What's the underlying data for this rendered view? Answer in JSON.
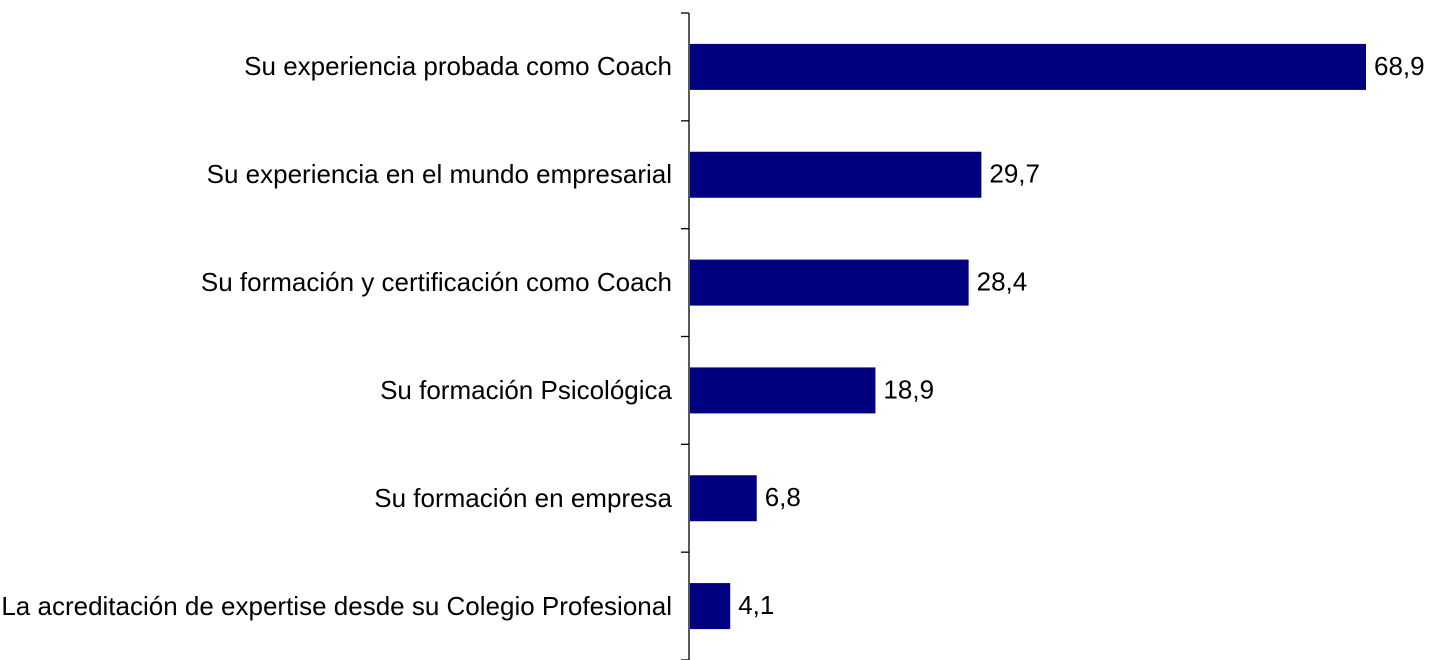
{
  "chart_data": {
    "type": "bar",
    "orientation": "horizontal",
    "categories": [
      "Su experiencia probada como Coach",
      "Su experiencia en el mundo empresarial",
      "Su formación y certificación como Coach",
      "Su formación Psicológica",
      "Su formación en empresa",
      "La acreditación de expertise desde su Colegio Profesional"
    ],
    "values": [
      68.9,
      29.7,
      28.4,
      18.9,
      6.8,
      4.1
    ],
    "value_labels": [
      "68,9",
      "29,7",
      "28,4",
      "18,9",
      "6,8",
      "4,1"
    ],
    "color": "#000080"
  }
}
